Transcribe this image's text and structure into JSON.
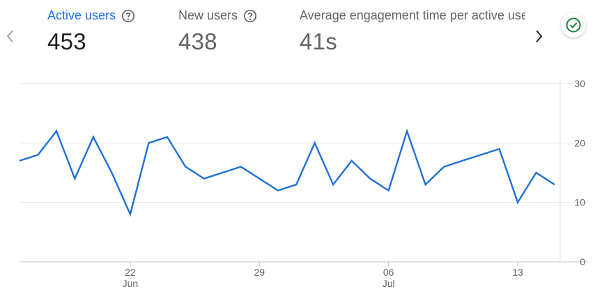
{
  "metrics": [
    {
      "label": "Active users",
      "value": "453"
    },
    {
      "label": "New users",
      "value": "438"
    },
    {
      "label": "Average engagement time per active user",
      "value": "41s"
    }
  ],
  "icons": {
    "prev": "chevron-left-icon",
    "next": "chevron-right-icon",
    "help": "help-circle-icon",
    "status": "check-circle-icon"
  },
  "colors": {
    "accent": "#1a73e8",
    "line": "#1f6fd6",
    "status": "#188038"
  },
  "chart_data": {
    "type": "line",
    "title": "",
    "xlabel": "",
    "ylabel": "",
    "ylim": [
      0,
      30
    ],
    "y_ticks": [
      0,
      10,
      20,
      30
    ],
    "x_ticks": [
      {
        "day": "22",
        "month": "Jun",
        "index": 6
      },
      {
        "day": "29",
        "month": "",
        "index": 13
      },
      {
        "day": "06",
        "month": "Jul",
        "index": 20
      },
      {
        "day": "13",
        "month": "",
        "index": 27
      }
    ],
    "grid": true,
    "x": [
      "Jun 16",
      "Jun 17",
      "Jun 18",
      "Jun 19",
      "Jun 20",
      "Jun 21",
      "Jun 22",
      "Jun 23",
      "Jun 24",
      "Jun 25",
      "Jun 26",
      "Jun 27",
      "Jun 28",
      "Jun 29",
      "Jun 30",
      "Jul 01",
      "Jul 02",
      "Jul 03",
      "Jul 04",
      "Jul 05",
      "Jul 06",
      "Jul 07",
      "Jul 08",
      "Jul 09",
      "Jul 10",
      "Jul 11",
      "Jul 12",
      "Jul 13",
      "Jul 14",
      "Jul 15"
    ],
    "series": [
      {
        "values": [
          17,
          18,
          22,
          14,
          21,
          15,
          8,
          20,
          21,
          16,
          14,
          15,
          16,
          14,
          12,
          13,
          20,
          13,
          17,
          14,
          12,
          22,
          13,
          16,
          17,
          18,
          19,
          10,
          15,
          13
        ]
      }
    ]
  }
}
